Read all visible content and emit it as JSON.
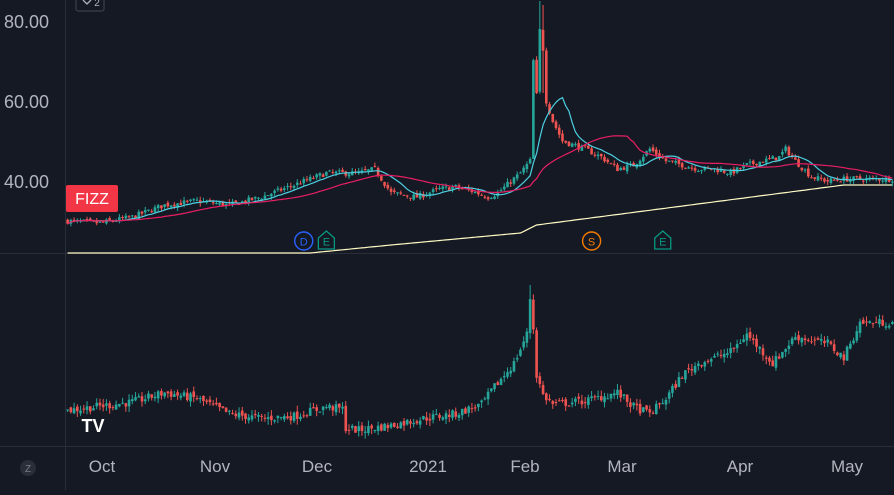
{
  "chart_data": [
    {
      "type": "candlestick",
      "pane": "price",
      "y_ticks": [
        80,
        60,
        40
      ],
      "y_tick_labels": [
        "80.00",
        "60.00",
        "40.00"
      ],
      "ylim": [
        22,
        87
      ],
      "x_labels": [
        "Oct",
        "Nov",
        "Dec",
        "2021",
        "Feb",
        "Mar",
        "Apr",
        "May"
      ],
      "symbol_badge": "FIZZ",
      "grid": false,
      "up_color": "#26a69a",
      "down_color": "#ef5350",
      "badge_color": "#f23645",
      "bars_per_month": 21,
      "approx_close_path": [
        [
          0,
          30
        ],
        [
          10,
          29.5
        ],
        [
          20,
          31
        ],
        [
          30,
          34
        ],
        [
          40,
          35
        ],
        [
          50,
          34
        ],
        [
          60,
          36
        ],
        [
          70,
          39
        ],
        [
          80,
          42
        ],
        [
          90,
          42
        ],
        [
          95,
          43
        ],
        [
          100,
          37
        ],
        [
          108,
          36
        ],
        [
          115,
          38
        ],
        [
          120,
          38.5
        ],
        [
          125,
          37.5
        ],
        [
          130,
          36
        ],
        [
          133,
          37
        ],
        [
          140,
          42
        ],
        [
          143,
          45
        ],
        [
          144,
          70
        ],
        [
          145,
          65
        ],
        [
          146,
          80
        ],
        [
          147,
          73
        ],
        [
          148,
          60
        ],
        [
          150,
          55
        ],
        [
          153,
          50
        ],
        [
          160,
          48
        ],
        [
          165,
          46
        ],
        [
          170,
          43
        ],
        [
          175,
          44
        ],
        [
          180,
          48
        ],
        [
          185,
          45
        ],
        [
          190,
          44
        ],
        [
          195,
          43
        ],
        [
          200,
          43
        ],
        [
          205,
          42
        ],
        [
          210,
          44
        ],
        [
          215,
          45
        ],
        [
          220,
          46
        ],
        [
          222,
          48
        ],
        [
          225,
          45
        ],
        [
          230,
          41
        ],
        [
          235,
          40
        ],
        [
          240,
          40.5
        ]
      ],
      "peak_high": 85,
      "series": [
        {
          "color": "#4dd0e1",
          "kind": "moving-average-short"
        },
        {
          "color": "#e91e63",
          "kind": "moving-average-medium"
        },
        {
          "color": "#fff9c4",
          "kind": "moving-average-long"
        }
      ],
      "long_ma_path": [
        [
          0,
          17
        ],
        [
          50,
          20
        ],
        [
          100,
          24
        ],
        [
          140,
          27
        ],
        [
          145,
          29
        ],
        [
          240,
          39
        ]
      ],
      "markers": [
        {
          "label": "D",
          "bar": 73,
          "color": "#2962ff"
        },
        {
          "label": "E",
          "bar": 80,
          "color": "#089981"
        },
        {
          "label": "S",
          "bar": 162,
          "color": "#f57c00"
        },
        {
          "label": "E",
          "bar": 184,
          "color": "#089981"
        }
      ]
    },
    {
      "type": "candlestick",
      "pane": "comparison",
      "ylim": [
        0,
        100
      ],
      "approx_close_path": [
        [
          0,
          25
        ],
        [
          20,
          32
        ],
        [
          30,
          40
        ],
        [
          40,
          35
        ],
        [
          50,
          22
        ],
        [
          60,
          18
        ],
        [
          70,
          20
        ],
        [
          80,
          28
        ],
        [
          85,
          26
        ],
        [
          86,
          10
        ],
        [
          90,
          8
        ],
        [
          100,
          12
        ],
        [
          110,
          18
        ],
        [
          120,
          22
        ],
        [
          128,
          30
        ],
        [
          132,
          45
        ],
        [
          138,
          65
        ],
        [
          142,
          90
        ],
        [
          143,
          140
        ],
        [
          144,
          95
        ],
        [
          145,
          55
        ],
        [
          147,
          38
        ],
        [
          150,
          30
        ],
        [
          160,
          33
        ],
        [
          170,
          40
        ],
        [
          175,
          28
        ],
        [
          180,
          22
        ],
        [
          185,
          35
        ],
        [
          190,
          55
        ],
        [
          195,
          65
        ],
        [
          205,
          75
        ],
        [
          210,
          90
        ],
        [
          218,
          65
        ],
        [
          225,
          88
        ],
        [
          235,
          82
        ],
        [
          240,
          70
        ],
        [
          245,
          100
        ]
      ]
    }
  ],
  "logo": "TV",
  "corner_button_label": "Z",
  "top_badge_label": "2",
  "colors": {
    "background": "#151924",
    "divider": "#2a2e39",
    "axis_text": "#b2b5be"
  }
}
